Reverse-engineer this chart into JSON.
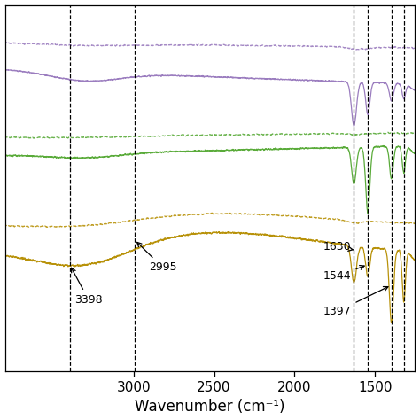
{
  "xlabel": "Wavenumber (cm⁻¹)",
  "xlim_left": 3800,
  "xlim_right": 1250,
  "background_color": "#ffffff",
  "purple_color": "#9b7dbf",
  "green_color": "#5aab3a",
  "gold_color": "#b8920a",
  "vlines": [
    3398,
    2995,
    1630,
    1544,
    1397,
    1320
  ],
  "xticks": [
    3000,
    2500,
    2000,
    1500
  ],
  "xtick_labels": [
    "3000",
    "2500",
    "2000",
    "1500"
  ],
  "fontsize_ticks": 11,
  "fontsize_label": 12,
  "fontsize_annot": 9,
  "lw": 0.9
}
